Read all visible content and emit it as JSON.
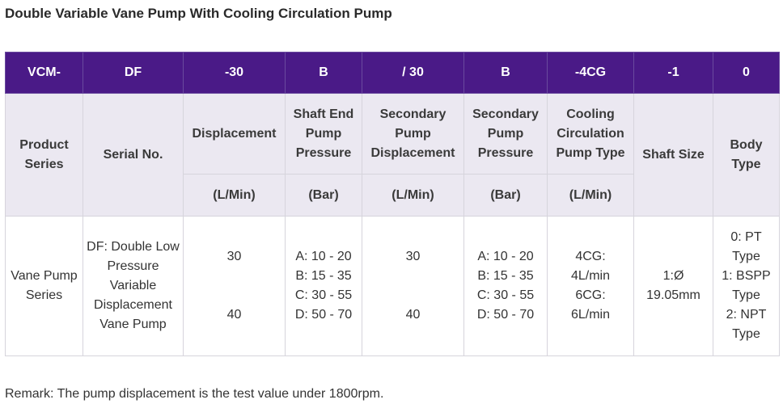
{
  "title": "Double Variable Vane Pump With Cooling Circulation Pump",
  "codes": [
    "VCM-",
    "DF",
    "-30",
    "B",
    "/ 30",
    "B",
    "-4CG",
    "-1",
    "0"
  ],
  "headers": {
    "product_series": "Product Series",
    "serial_no": "Serial No.",
    "displacement": "Displacement",
    "shaft_end_pressure": "Shaft End Pump Pressure",
    "secondary_displacement": "Secondary Pump Displacement",
    "secondary_pressure": "Secondary Pump Pressure",
    "cooling_type": "Cooling Circulation Pump Type",
    "shaft_size": "Shaft Size",
    "body_type": "Body Type"
  },
  "units": {
    "displacement": "(L/Min)",
    "shaft_end_pressure": "(Bar)",
    "secondary_displacement": "(L/Min)",
    "secondary_pressure": "(Bar)",
    "cooling_type": "(L/Min)"
  },
  "row": {
    "product_series": "Vane Pump Series",
    "serial_no": "DF: Double Low Pressure Variable Displacement Vane Pump",
    "displacement": [
      "30",
      "40"
    ],
    "pressure": [
      "A: 10 - 20",
      "B: 15 - 35",
      "C: 30 - 55",
      "D: 50 - 70"
    ],
    "secondary_displacement": [
      "30",
      "40"
    ],
    "secondary_pressure": [
      "A: 10 - 20",
      "B: 15 - 35",
      "C: 30 - 55",
      "D: 50 - 70"
    ],
    "cooling": [
      "4CG:",
      "4L/min",
      "6CG:",
      "6L/min"
    ],
    "shaft_size": [
      "1:Ø",
      "19.05mm"
    ],
    "body_type": [
      "0: PT",
      "Type",
      "1: BSPP",
      "Type",
      "2: NPT",
      "Type"
    ]
  },
  "remark": "Remark: The pump displacement is the test value under 1800rpm.",
  "colors": {
    "header_bg": "#4a1a87",
    "subheader_bg": "#ebe8f1"
  }
}
